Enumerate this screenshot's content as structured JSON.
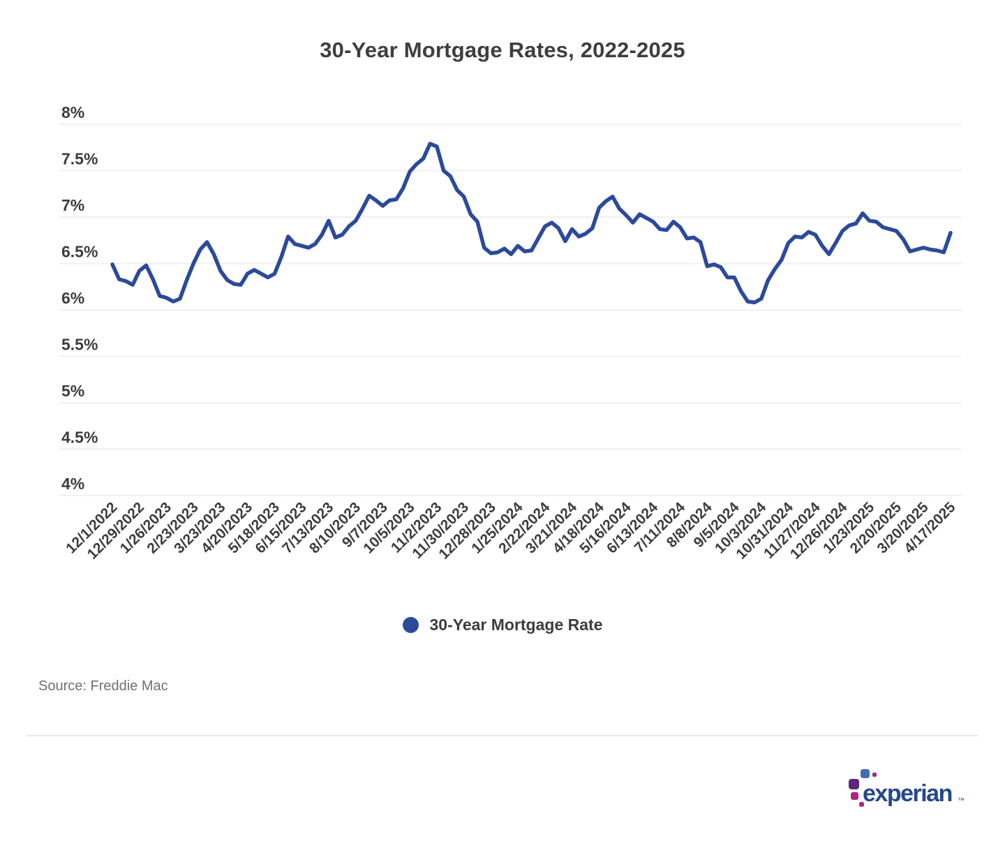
{
  "page": {
    "background": "#ffffff"
  },
  "chart": {
    "title": "30-Year Mortgage Rates, 2022-2025",
    "legend_label": "30-Year Mortgage Rate",
    "source": "Source: Freddie Mac",
    "line_color": "#2b4a9b",
    "tick_color": "#3d3d3d",
    "gridline_color": "#f0f0f0"
  },
  "chart_data": {
    "type": "line",
    "title": "30-Year Mortgage Rates, 2022-2025",
    "xlabel": "",
    "ylabel": "",
    "ylim": [
      4,
      8
    ],
    "grid": "horizontal",
    "legend_position": "bottom",
    "y_ticks": [
      "8%",
      "7.5%",
      "7%",
      "6.5%",
      "6%",
      "5.5%",
      "5%",
      "4.5%",
      "4%"
    ],
    "tick_every": 4,
    "x_tick_labels": [
      "12/1/2022",
      "12/29/2022",
      "1/26/2023",
      "2/23/2023",
      "3/23/2023",
      "4/20/2023",
      "5/18/2023",
      "6/15/2023",
      "7/13/2023",
      "8/10/2023",
      "9/7/2023",
      "10/5/2023",
      "11/2/2023",
      "11/30/2023",
      "12/28/2023",
      "1/25/2024",
      "2/22/2024",
      "3/21/2024",
      "4/18/2024",
      "5/16/2024",
      "6/13/2024",
      "7/11/2024",
      "8/8/2024",
      "9/5/2024",
      "10/3/2024",
      "10/31/2024",
      "11/27/2024",
      "12/26/2024",
      "1/23/2025",
      "2/20/2025",
      "3/20/2025",
      "4/17/2025"
    ],
    "x": [
      "12/1/2022",
      "12/8/2022",
      "12/15/2022",
      "12/22/2022",
      "12/29/2022",
      "1/5/2023",
      "1/12/2023",
      "1/19/2023",
      "1/26/2023",
      "2/2/2023",
      "2/9/2023",
      "2/16/2023",
      "2/23/2023",
      "3/2/2023",
      "3/9/2023",
      "3/16/2023",
      "3/23/2023",
      "3/30/2023",
      "4/6/2023",
      "4/13/2023",
      "4/20/2023",
      "4/27/2023",
      "5/4/2023",
      "5/11/2023",
      "5/18/2023",
      "5/25/2023",
      "6/1/2023",
      "6/8/2023",
      "6/15/2023",
      "6/22/2023",
      "6/29/2023",
      "7/6/2023",
      "7/13/2023",
      "7/20/2023",
      "7/27/2023",
      "8/3/2023",
      "8/10/2023",
      "8/17/2023",
      "8/24/2023",
      "8/31/2023",
      "9/7/2023",
      "9/14/2023",
      "9/21/2023",
      "9/28/2023",
      "10/5/2023",
      "10/12/2023",
      "10/19/2023",
      "10/26/2023",
      "11/2/2023",
      "11/9/2023",
      "11/16/2023",
      "11/22/2023",
      "11/30/2023",
      "12/7/2023",
      "12/14/2023",
      "12/21/2023",
      "12/28/2023",
      "1/4/2024",
      "1/11/2024",
      "1/18/2024",
      "1/25/2024",
      "2/1/2024",
      "2/8/2024",
      "2/15/2024",
      "2/22/2024",
      "2/29/2024",
      "3/7/2024",
      "3/14/2024",
      "3/21/2024",
      "3/28/2024",
      "4/4/2024",
      "4/11/2024",
      "4/18/2024",
      "4/25/2024",
      "5/2/2024",
      "5/9/2024",
      "5/16/2024",
      "5/23/2024",
      "5/30/2024",
      "6/6/2024",
      "6/13/2024",
      "6/20/2024",
      "6/27/2024",
      "7/3/2024",
      "7/11/2024",
      "7/18/2024",
      "7/25/2024",
      "8/1/2024",
      "8/8/2024",
      "8/15/2024",
      "8/22/2024",
      "8/29/2024",
      "9/5/2024",
      "9/12/2024",
      "9/19/2024",
      "9/26/2024",
      "10/3/2024",
      "10/10/2024",
      "10/17/2024",
      "10/24/2024",
      "10/31/2024",
      "11/7/2024",
      "11/14/2024",
      "11/21/2024",
      "11/27/2024",
      "12/5/2024",
      "12/12/2024",
      "12/19/2024",
      "12/26/2024",
      "1/2/2025",
      "1/9/2025",
      "1/16/2025",
      "1/23/2025",
      "1/30/2025",
      "2/6/2025",
      "2/13/2025",
      "2/20/2025",
      "2/27/2025",
      "3/6/2025",
      "3/13/2025",
      "3/20/2025",
      "3/27/2025",
      "4/3/2025",
      "4/10/2025",
      "4/17/2025"
    ],
    "series": [
      {
        "name": "30-Year Mortgage Rate",
        "color": "#2b4a9b",
        "values": [
          6.49,
          6.33,
          6.31,
          6.27,
          6.42,
          6.48,
          6.33,
          6.15,
          6.13,
          6.09,
          6.12,
          6.32,
          6.5,
          6.65,
          6.73,
          6.6,
          6.42,
          6.32,
          6.28,
          6.27,
          6.39,
          6.43,
          6.39,
          6.35,
          6.39,
          6.57,
          6.79,
          6.71,
          6.69,
          6.67,
          6.71,
          6.81,
          6.96,
          6.78,
          6.81,
          6.9,
          6.96,
          7.09,
          7.23,
          7.18,
          7.12,
          7.18,
          7.19,
          7.31,
          7.49,
          7.57,
          7.63,
          7.79,
          7.76,
          7.5,
          7.44,
          7.29,
          7.22,
          7.03,
          6.95,
          6.67,
          6.61,
          6.62,
          6.66,
          6.6,
          6.69,
          6.63,
          6.64,
          6.77,
          6.9,
          6.94,
          6.88,
          6.74,
          6.87,
          6.79,
          6.82,
          6.88,
          7.1,
          7.17,
          7.22,
          7.09,
          7.02,
          6.94,
          7.03,
          6.99,
          6.95,
          6.87,
          6.86,
          6.95,
          6.89,
          6.77,
          6.78,
          6.73,
          6.47,
          6.49,
          6.46,
          6.35,
          6.35,
          6.2,
          6.09,
          6.08,
          6.12,
          6.32,
          6.44,
          6.54,
          6.72,
          6.79,
          6.78,
          6.84,
          6.81,
          6.69,
          6.6,
          6.72,
          6.85,
          6.91,
          6.93,
          7.04,
          6.96,
          6.95,
          6.89,
          6.87,
          6.85,
          6.76,
          6.63,
          6.65,
          6.67,
          6.65,
          6.64,
          6.62,
          6.83
        ]
      }
    ]
  },
  "footer": {
    "logo_text": "experian",
    "trademark": "™",
    "colors": {
      "wordmark": "#26478d",
      "blue": "#406eb3",
      "purple": "#5d267b",
      "magenta": "#b12384"
    }
  }
}
